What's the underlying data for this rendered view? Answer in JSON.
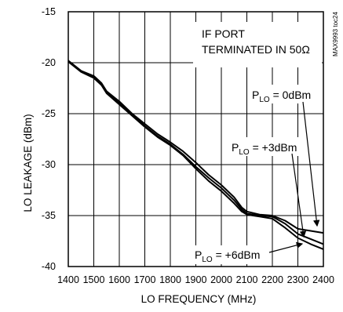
{
  "chart_data": {
    "type": "line",
    "xlabel": "LO FREQUENCY (MHz)",
    "ylabel": "LO LEAKAGE (dBm)",
    "xlim": [
      1400,
      2400
    ],
    "ylim": [
      -40,
      -15
    ],
    "x_ticks": [
      1400,
      1500,
      1600,
      1700,
      1800,
      1900,
      2000,
      2100,
      2200,
      2300,
      2400
    ],
    "y_ticks": [
      -15,
      -20,
      -25,
      -30,
      -35,
      -40
    ],
    "grid": true,
    "chart_id": "MAX9993 toc24",
    "annotations": {
      "line1": "IF PORT",
      "line2": "TERMINATED IN 50Ω"
    },
    "series_labels": [
      {
        "prefix": "P",
        "sub": "LO",
        "suffix": " = 0dBm"
      },
      {
        "prefix": "P",
        "sub": "LO",
        "suffix": " = +3dBm"
      },
      {
        "prefix": "P",
        "sub": "LO",
        "suffix": " = +6dBm"
      }
    ],
    "x": [
      1400,
      1450,
      1500,
      1530,
      1550,
      1600,
      1650,
      1700,
      1750,
      1800,
      1850,
      1900,
      1950,
      2000,
      2050,
      2080,
      2100,
      2150,
      2200,
      2250,
      2300,
      2350,
      2400
    ],
    "series": [
      {
        "values": [
          -19.8,
          -20.8,
          -21.3,
          -22.0,
          -22.8,
          -23.8,
          -25.0,
          -26.0,
          -27.0,
          -27.8,
          -28.7,
          -29.8,
          -31.0,
          -32.0,
          -33.2,
          -34.2,
          -34.6,
          -34.9,
          -35.0,
          -35.5,
          -36.3,
          -36.5,
          -36.7
        ]
      },
      {
        "values": [
          -19.8,
          -20.8,
          -21.4,
          -22.1,
          -22.9,
          -24.0,
          -25.1,
          -26.2,
          -27.2,
          -28.0,
          -29.0,
          -30.2,
          -31.3,
          -32.3,
          -33.5,
          -34.4,
          -34.8,
          -35.0,
          -35.1,
          -35.8,
          -36.8,
          -37.3,
          -37.8
        ]
      },
      {
        "values": [
          -19.9,
          -20.9,
          -21.5,
          -22.2,
          -23.0,
          -24.1,
          -25.2,
          -26.3,
          -27.3,
          -28.1,
          -29.1,
          -30.4,
          -31.6,
          -32.6,
          -33.8,
          -34.6,
          -34.9,
          -35.1,
          -35.3,
          -36.2,
          -37.2,
          -37.8,
          -38.3
        ]
      }
    ]
  }
}
